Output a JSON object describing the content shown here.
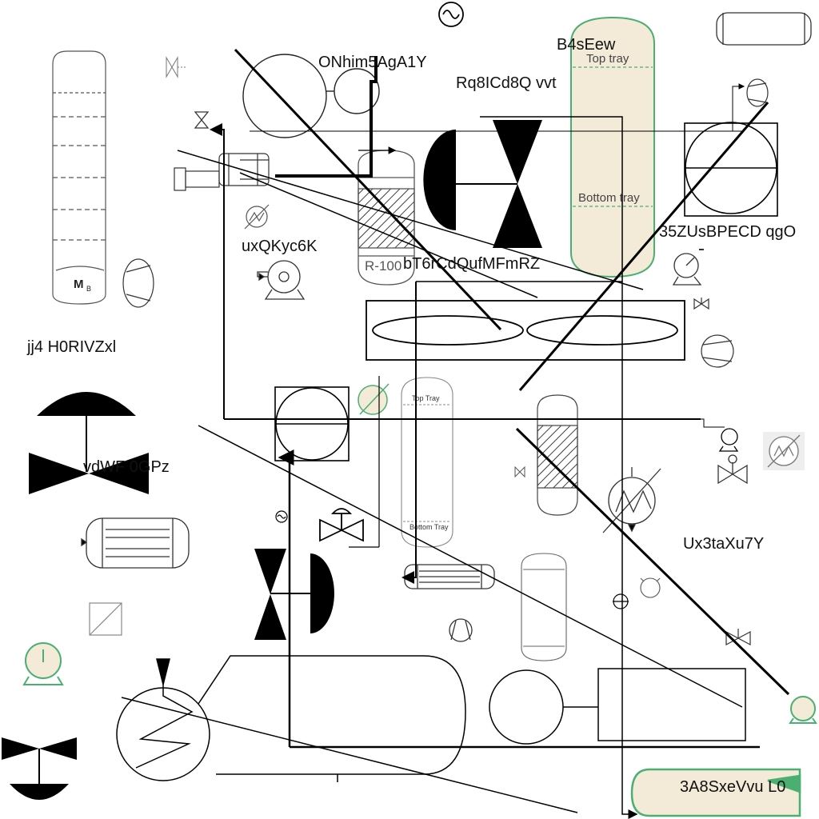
{
  "labels": {
    "l1": "ONhim5AgA1Y",
    "l2": "B4sEew",
    "l3": "Rq8ICd8Q vvt",
    "l4": "uxQKyc6K",
    "l5": "bT6rCdQufMFmRZ",
    "l6": "35ZUsBPECD qgO",
    "l7": "jj4 H0RIVZxl",
    "l8": "vdWF 0GPz",
    "l9": "Ux3taXu7Y",
    "l10": "3A8SxeVvu L0"
  },
  "equipment": {
    "col_top": "Top tray",
    "col_bottom": "Bottom tray",
    "col2_top": "Top Tray",
    "col2_bottom": "Bottom Tray",
    "reactor_tag": "R-100",
    "drum_tag_main": "M",
    "drum_tag_sub": "B"
  },
  "colors": {
    "line": "#000000",
    "equipment_fill": "#f3ead7",
    "accent_green": "#4caf72"
  }
}
